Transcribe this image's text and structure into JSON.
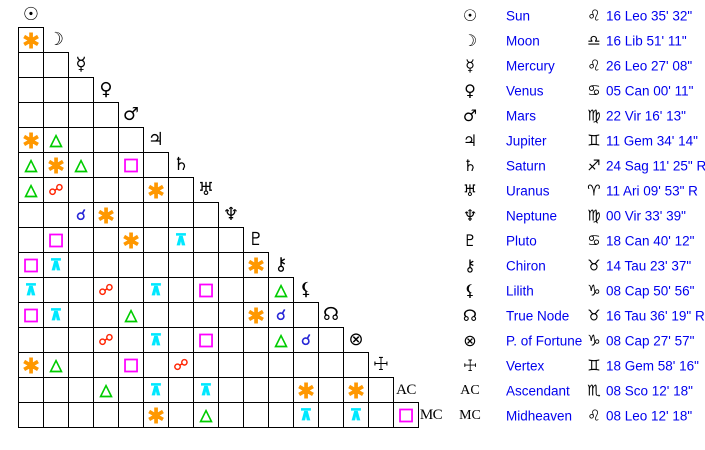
{
  "colors": {
    "background": "#ffffff",
    "grid_line": "#000000",
    "glyph_black": "#000000",
    "text_blue": "#0000ee"
  },
  "aspects": {
    "con": {
      "name": "conjunction",
      "char": "☌",
      "color": "#2323d6"
    },
    "sex": {
      "name": "sextile",
      "char": "∗",
      "color": "#ff9800"
    },
    "sq": {
      "name": "square",
      "char": "□",
      "color": "#ff00ff"
    },
    "tri": {
      "name": "trine",
      "char": "△",
      "color": "#00cc00"
    },
    "opp": {
      "name": "opposition",
      "char": "☍",
      "color": "#ff2200"
    },
    "qcx": {
      "name": "quincunx",
      "char": "⊼",
      "color": "#00e8ff"
    }
  },
  "planets": [
    {
      "name": "Sun",
      "glyph": "☉",
      "sign_glyph": "♌",
      "position": "16 Leo 35' 32\""
    },
    {
      "name": "Moon",
      "glyph": "☽",
      "sign_glyph": "♎",
      "position": "16 Lib 51' 11\""
    },
    {
      "name": "Mercury",
      "glyph": "☿",
      "sign_glyph": "♌",
      "position": "26 Leo 27' 08\""
    },
    {
      "name": "Venus",
      "glyph": "♀",
      "sign_glyph": "♋",
      "position": "05 Can 00' 11\""
    },
    {
      "name": "Mars",
      "glyph": "♂",
      "sign_glyph": "♍",
      "position": "22 Vir 16' 13\""
    },
    {
      "name": "Jupiter",
      "glyph": "♃",
      "sign_glyph": "♊",
      "position": "11 Gem 34' 14\""
    },
    {
      "name": "Saturn",
      "glyph": "♄",
      "sign_glyph": "♐",
      "position": "24 Sag 11' 25\" R"
    },
    {
      "name": "Uranus",
      "glyph": "♅",
      "sign_glyph": "♈",
      "position": "11 Ari 09' 53\" R"
    },
    {
      "name": "Neptune",
      "glyph": "♆",
      "sign_glyph": "♍",
      "position": "00 Vir 33' 39\""
    },
    {
      "name": "Pluto",
      "glyph": "♇",
      "sign_glyph": "♋",
      "position": "18 Can 40' 12\""
    },
    {
      "name": "Chiron",
      "glyph": "⚷",
      "sign_glyph": "♉",
      "position": "14 Tau 23' 37\""
    },
    {
      "name": "Lilith",
      "glyph": "⚸",
      "sign_glyph": "♑",
      "position": "08 Cap 50' 56\""
    },
    {
      "name": "True Node",
      "glyph": "☊",
      "sign_glyph": "♉",
      "position": "16 Tau 36' 19\" R"
    },
    {
      "name": "P. of Fortune",
      "glyph": "⊗",
      "sign_glyph": "♑",
      "position": "08 Cap 27' 57\""
    },
    {
      "name": "Vertex",
      "glyph": "☩",
      "sign_glyph": "♊",
      "position": "18 Gem 58' 16\""
    },
    {
      "name": "Ascendant",
      "glyph": "AC",
      "sign_glyph": "♏",
      "position": "08 Sco 12' 18\""
    },
    {
      "name": "Midheaven",
      "glyph": "MC",
      "sign_glyph": "♌",
      "position": "08 Leo 12' 18\""
    }
  ],
  "aspect_grid_rows": [
    [],
    [
      "sex"
    ],
    [
      "",
      ""
    ],
    [
      "",
      "",
      ""
    ],
    [
      "",
      "",
      "",
      ""
    ],
    [
      "sex",
      "tri",
      "",
      "",
      ""
    ],
    [
      "tri",
      "sex",
      "tri",
      "",
      "sq",
      ""
    ],
    [
      "tri",
      "opp",
      "",
      "",
      "",
      "sex",
      ""
    ],
    [
      "",
      "",
      "con",
      "sex",
      "",
      "",
      "",
      ""
    ],
    [
      "",
      "sq",
      "",
      "",
      "sex",
      "",
      "qcx",
      "",
      ""
    ],
    [
      "sq",
      "qcx",
      "",
      "",
      "",
      "",
      "",
      "",
      "",
      "sex"
    ],
    [
      "qcx",
      "",
      "",
      "opp",
      "",
      "qcx",
      "",
      "sq",
      "",
      "",
      "tri"
    ],
    [
      "sq",
      "qcx",
      "",
      "",
      "tri",
      "",
      "",
      "",
      "",
      "sex",
      "con",
      ""
    ],
    [
      "",
      "",
      "",
      "opp",
      "",
      "qcx",
      "",
      "sq",
      "",
      "",
      "tri",
      "con",
      ""
    ],
    [
      "sex",
      "tri",
      "",
      "",
      "sq",
      "",
      "opp",
      "",
      "",
      "",
      "",
      "",
      "",
      ""
    ],
    [
      "",
      "",
      "",
      "tri",
      "",
      "qcx",
      "",
      "qcx",
      "",
      "",
      "",
      "sex",
      "",
      "sex",
      ""
    ],
    [
      "",
      "",
      "",
      "",
      "",
      "sex",
      "",
      "tri",
      "",
      "",
      "",
      "qcx",
      "",
      "qcx",
      "",
      "sq"
    ]
  ]
}
